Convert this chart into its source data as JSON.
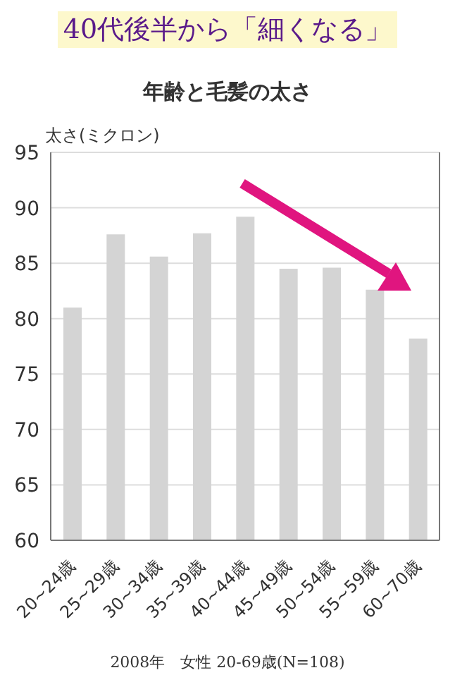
{
  "chart_data": {
    "type": "bar",
    "title": "40代後半から「細くなる」",
    "subtitle": "年齢と毛髪の太さ",
    "ylabel": "太さ(ミクロン)",
    "categories": [
      "20~24歳",
      "25~29歳",
      "30~34歳",
      "35~39歳",
      "40~44歳",
      "45~49歳",
      "50~54歳",
      "55~59歳",
      "60~70歳"
    ],
    "values": [
      81.0,
      87.6,
      85.6,
      87.7,
      89.2,
      84.5,
      84.6,
      82.6,
      78.2
    ],
    "color": "#d4d4d4",
    "ylim": [
      60,
      95
    ],
    "yticks": [
      60,
      65,
      70,
      75,
      80,
      85,
      90,
      95
    ],
    "grid": "y",
    "annotations": [
      "2008年　女性 20-69歳(N=108)"
    ]
  }
}
